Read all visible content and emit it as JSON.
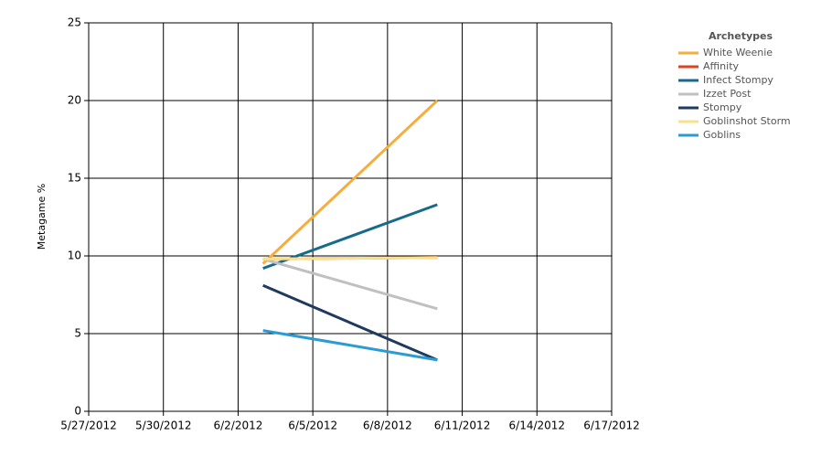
{
  "chart_data": {
    "type": "line",
    "y_label": "Metagame %",
    "legend_title": "Archetypes",
    "legend_position": "right",
    "grid": true,
    "x": [
      "6/3/2012",
      "6/10/2012"
    ],
    "xlim": [
      "5/27/2012",
      "6/17/2012"
    ],
    "xticks": [
      "5/27/2012",
      "5/30/2012",
      "6/2/2012",
      "6/5/2012",
      "6/8/2012",
      "6/11/2012",
      "6/14/2012",
      "6/17/2012"
    ],
    "ylim": [
      0,
      25
    ],
    "yticks": [
      0,
      5,
      10,
      15,
      20,
      25
    ],
    "series": [
      {
        "name": "White Weenie",
        "color": "#f5ae3c",
        "values": [
          9.5,
          20.0
        ]
      },
      {
        "name": "Affinity",
        "color": "#d9451c",
        "values": [
          9.8,
          9.9
        ]
      },
      {
        "name": "Infect Stompy",
        "color": "#176a8c",
        "values": [
          9.2,
          13.3
        ]
      },
      {
        "name": "Izzet Post",
        "color": "#c0c0c0",
        "values": [
          9.8,
          6.6
        ]
      },
      {
        "name": "Stompy",
        "color": "#1f3a5f",
        "values": [
          8.1,
          3.3
        ]
      },
      {
        "name": "Goblinshot Storm",
        "color": "#fbe08a",
        "values": [
          9.8,
          9.9
        ]
      },
      {
        "name": "Goblins",
        "color": "#2b9bd3",
        "values": [
          5.2,
          3.3
        ]
      }
    ]
  }
}
